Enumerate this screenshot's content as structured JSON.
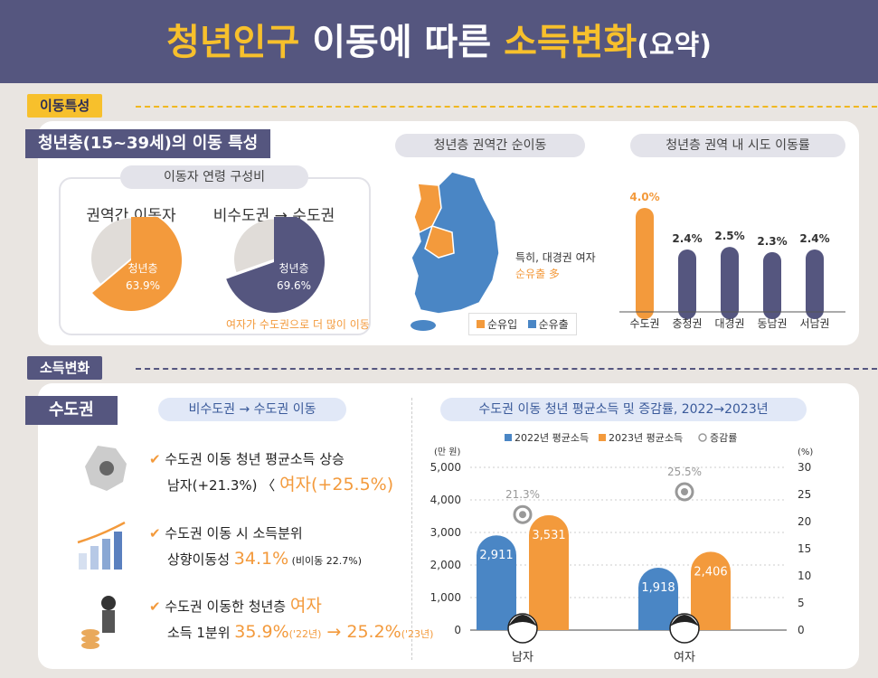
{
  "title": {
    "part1": "청년인구 ",
    "part2": "이동",
    "part3": "에 따른 ",
    "part4": "소득변화",
    "part5": "(요약)"
  },
  "sections": {
    "movement": "이동특성",
    "income": "소득변화"
  },
  "movement": {
    "tag": "청년층(15~39세)의 이동 특성",
    "age_box_title": "이동자 연령 구성비",
    "pie1_title": "권역간 이동자",
    "pie2_title": "비수도권 → 수도권",
    "pie_label": "청년층",
    "pie1_value": "63.9%",
    "pie2_value": "69.6%",
    "pie2_note": "여자가 수도권으로 더 많이 이동",
    "map_title": "청년층 권역간 순이동",
    "map_note1": "특히, 대경권 여자",
    "map_note2": "순유출 多",
    "map_legend": [
      "순유입",
      "순유출"
    ],
    "rate_title": "청년층 권역 내 시도 이동률"
  },
  "income": {
    "tag": "수도권",
    "sub_title": "비수도권 → 수도권 이동",
    "items": [
      {
        "line1": "수도권 이동 청년 평균소득 상승",
        "line2a": "남자(+21.3%) 〈 ",
        "line2b": "여자(+25.5%)",
        "line2c": ""
      },
      {
        "line1": "수도권 이동 시 소득분위",
        "line2a": "상향이동성 ",
        "line2b": "34.1%",
        "line2c": " (비이동 22.7%)"
      },
      {
        "line1a": "수도권 이동한 청년층 ",
        "line1b": "여자",
        "line2a": "소득 1분위 ",
        "line2b": "35.9%",
        "line2c": "('22년)",
        "line2d": " → 25.2%",
        "line2e": "('23년)"
      }
    ],
    "chart_title": "수도권 이동 청년 평균소득 및 증감률, 2022→2023년"
  },
  "colors": {
    "orange": "#f39a3c",
    "purple": "#55567f",
    "blue": "#4a86c5",
    "yellow": "#f7c02c",
    "gray": "#e0dcd8"
  },
  "chart_data": [
    {
      "type": "pie",
      "title": "권역간 이동자",
      "slices": [
        {
          "label": "청년층",
          "value": 63.9
        },
        {
          "label": "",
          "value": 36.1
        }
      ]
    },
    {
      "type": "pie",
      "title": "비수도권 → 수도권",
      "slices": [
        {
          "label": "청년층",
          "value": 69.6
        },
        {
          "label": "",
          "value": 30.4
        }
      ]
    },
    {
      "type": "bar",
      "title": "청년층 권역 내 시도 이동률",
      "categories": [
        "수도권",
        "충청권",
        "대경권",
        "동남권",
        "서남권"
      ],
      "values": [
        4.0,
        2.4,
        2.5,
        2.3,
        2.4
      ],
      "labels": [
        "4.0%",
        "2.4%",
        "2.5%",
        "2.3%",
        "2.4%"
      ],
      "unit": "%"
    },
    {
      "type": "bar",
      "title": "수도권 이동 청년 평균소득 및 증감률, 2022→2023년",
      "categories": [
        "남자",
        "여자"
      ],
      "series": [
        {
          "name": "2022년 평균소득",
          "values": [
            2911,
            1918
          ],
          "labels": [
            "2,911",
            "1,918"
          ]
        },
        {
          "name": "2023년 평균소득",
          "values": [
            3531,
            2406
          ],
          "labels": [
            "3,531",
            "2,406"
          ]
        },
        {
          "name": "증감률",
          "axis": "right",
          "values": [
            21.3,
            25.5
          ],
          "labels": [
            "21.3%",
            "25.5%"
          ]
        }
      ],
      "ylabel": "(만 원)",
      "y2label": "(%)",
      "ylim": [
        0,
        5000
      ],
      "y2lim": [
        0,
        30
      ],
      "yticks": [
        "0",
        "1,000",
        "2,000",
        "3,000",
        "4,000",
        "5,000"
      ],
      "y2ticks": [
        "0",
        "5",
        "10",
        "15",
        "20",
        "25",
        "30"
      ],
      "grid": true,
      "legend": "top"
    }
  ]
}
